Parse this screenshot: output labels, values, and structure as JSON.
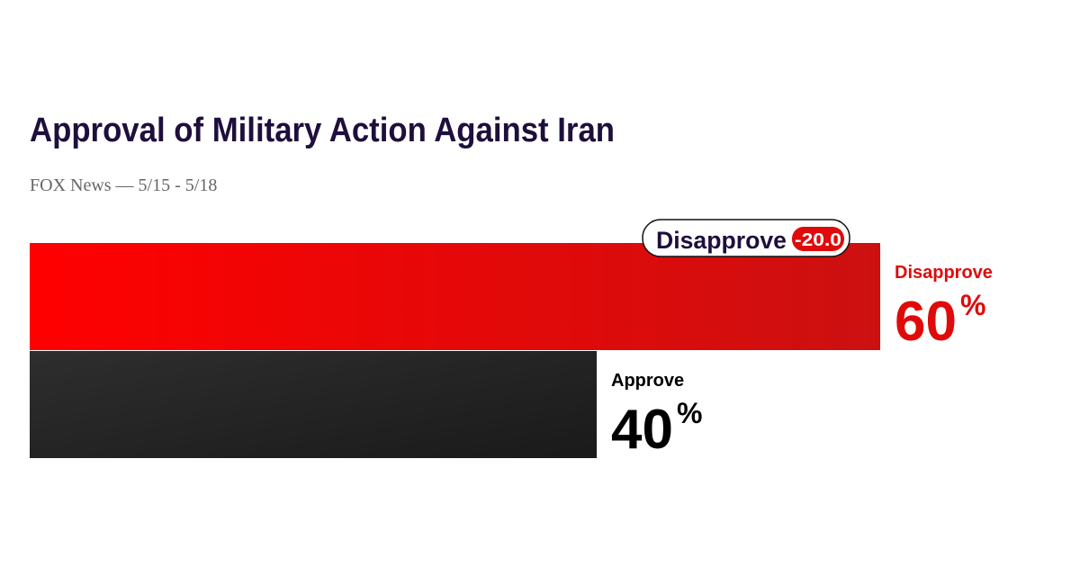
{
  "chart_data": {
    "type": "hbar",
    "title": "Approval of Military Action Against Iran",
    "subtitle": "FOX News — 5/15 - 5/18",
    "series": [
      {
        "name": "Disapprove",
        "color": "#ee0a0a",
        "label_color": "#e00a0a",
        "values": [
          60
        ]
      },
      {
        "name": "Approve",
        "color": "#262626",
        "label_color": "#000000",
        "values": [
          40
        ]
      }
    ],
    "value_unit": "%",
    "xlim": [
      0,
      60
    ],
    "lead": {
      "name": "Disapprove",
      "value": -20,
      "label": "-20.0"
    }
  }
}
